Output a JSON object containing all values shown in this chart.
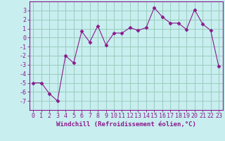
{
  "x": [
    0,
    1,
    2,
    3,
    4,
    5,
    6,
    7,
    8,
    9,
    10,
    11,
    12,
    13,
    14,
    15,
    16,
    17,
    18,
    19,
    20,
    21,
    22,
    23
  ],
  "y": [
    -5,
    -5,
    -6.2,
    -7,
    -2,
    -2.8,
    0.7,
    -0.5,
    1.3,
    -0.8,
    0.5,
    0.5,
    1.1,
    0.8,
    1.1,
    3.3,
    2.3,
    1.6,
    1.6,
    0.9,
    3.1,
    1.5,
    0.8,
    -3.2
  ],
  "line_color": "#8b1a8b",
  "marker": "D",
  "marker_size": 2.5,
  "bg_color": "#c8eef0",
  "grid_color": "#99ccbb",
  "xlabel": "Windchill (Refroidissement éolien,°C)",
  "xlim": [
    -0.5,
    23.5
  ],
  "ylim": [
    -8,
    4
  ],
  "yticks": [
    3,
    2,
    1,
    0,
    -1,
    -2,
    -3,
    -4,
    -5,
    -6,
    -7
  ],
  "xtick_labels": [
    "0",
    "1",
    "2",
    "3",
    "4",
    "5",
    "6",
    "7",
    "8",
    "9",
    "10",
    "11",
    "12",
    "13",
    "14",
    "15",
    "16",
    "17",
    "18",
    "19",
    "20",
    "21",
    "22",
    "23"
  ],
  "label_fontsize": 6.5,
  "tick_fontsize": 6.0
}
